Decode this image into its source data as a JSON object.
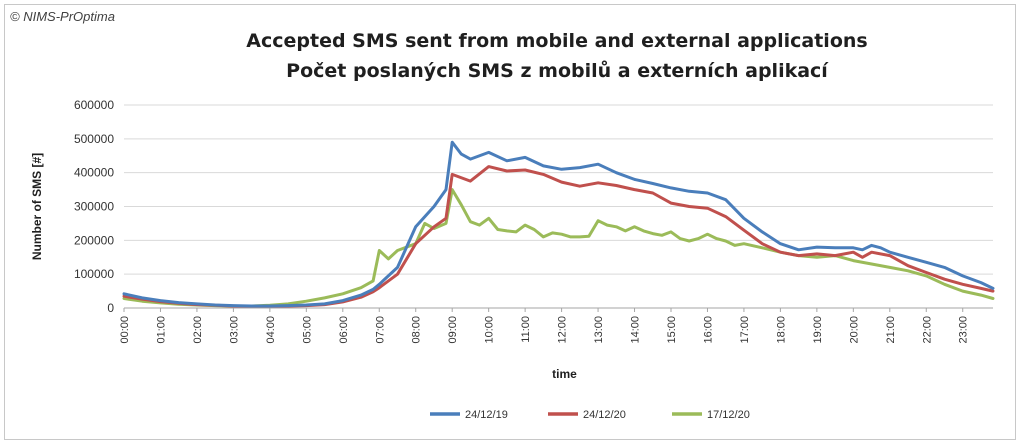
{
  "copyright": "© NIMS-PrOptima",
  "chart_data": {
    "type": "line",
    "title": "Accepted SMS sent from mobile and external applications",
    "subtitle": "Počet poslaných SMS z mobilů a externích aplikací",
    "xlabel": "time",
    "ylabel": "Number of SMS [#]",
    "ylim": [
      0,
      600000
    ],
    "yticks": [
      0,
      100000,
      200000,
      300000,
      400000,
      500000,
      600000
    ],
    "ytick_labels": [
      "0",
      "100000",
      "200000",
      "300000",
      "400000",
      "500000",
      "600000"
    ],
    "xlim": [
      0,
      23.83
    ],
    "xticks": [
      0,
      1,
      2,
      3,
      4,
      5,
      6,
      7,
      8,
      9,
      10,
      11,
      12,
      13,
      14,
      15,
      16,
      17,
      18,
      19,
      20,
      21,
      22,
      23
    ],
    "xtick_labels": [
      "00:00",
      "01:00",
      "02:00",
      "03:00",
      "04:00",
      "05:00",
      "06:00",
      "07:00",
      "08:00",
      "09:00",
      "10:00",
      "11:00",
      "12:00",
      "13:00",
      "14:00",
      "15:00",
      "16:00",
      "17:00",
      "18:00",
      "19:00",
      "20:00",
      "21:00",
      "22:00",
      "23:00"
    ],
    "grid": true,
    "legend_position": "bottom",
    "series": [
      {
        "name": "24/12/19",
        "color": "#4a7ebb",
        "x": [
          0,
          0.5,
          1,
          1.5,
          2,
          2.5,
          3,
          3.5,
          4,
          4.5,
          5,
          5.5,
          6,
          6.5,
          6.83,
          7,
          7.5,
          8,
          8.5,
          8.83,
          9,
          9.25,
          9.5,
          10,
          10.5,
          11,
          11.5,
          12,
          12.5,
          13,
          13.5,
          14,
          14.5,
          15,
          15.5,
          16,
          16.5,
          17,
          17.5,
          18,
          18.5,
          19,
          19.5,
          20,
          20.25,
          20.5,
          20.75,
          21,
          21.5,
          22,
          22.5,
          23,
          23.5,
          23.83
        ],
        "y": [
          42000,
          30000,
          22000,
          16000,
          12000,
          9000,
          7000,
          6000,
          6000,
          7000,
          9000,
          12000,
          22000,
          38000,
          55000,
          70000,
          120000,
          240000,
          300000,
          350000,
          490000,
          455000,
          440000,
          460000,
          435000,
          445000,
          420000,
          410000,
          415000,
          425000,
          400000,
          380000,
          368000,
          355000,
          345000,
          340000,
          320000,
          265000,
          225000,
          190000,
          172000,
          180000,
          178000,
          178000,
          172000,
          185000,
          178000,
          165000,
          150000,
          135000,
          120000,
          95000,
          75000,
          58000
        ]
      },
      {
        "name": "24/12/20",
        "color": "#c0504d",
        "x": [
          0,
          0.5,
          1,
          1.5,
          2,
          2.5,
          3,
          3.5,
          4,
          4.5,
          5,
          5.5,
          6,
          6.5,
          6.83,
          7,
          7.5,
          8,
          8.5,
          8.83,
          9,
          9.5,
          10,
          10.5,
          11,
          11.5,
          12,
          12.5,
          13,
          13.5,
          14,
          14.5,
          15,
          15.5,
          16,
          16.5,
          17,
          17.5,
          18,
          18.5,
          19,
          19.5,
          20,
          20.25,
          20.5,
          21,
          21.5,
          22,
          22.5,
          23,
          23.5,
          23.83
        ],
        "y": [
          35000,
          26000,
          19000,
          14000,
          10000,
          8000,
          6000,
          5500,
          5500,
          6000,
          7000,
          10000,
          18000,
          32000,
          48000,
          60000,
          100000,
          190000,
          240000,
          265000,
          395000,
          375000,
          418000,
          405000,
          408000,
          395000,
          372000,
          360000,
          370000,
          362000,
          350000,
          340000,
          310000,
          300000,
          295000,
          270000,
          230000,
          190000,
          165000,
          155000,
          160000,
          155000,
          165000,
          150000,
          165000,
          155000,
          125000,
          105000,
          85000,
          70000,
          58000,
          50000
        ]
      },
      {
        "name": "17/12/20",
        "color": "#9bbb59",
        "x": [
          0,
          0.5,
          1,
          1.5,
          2,
          2.5,
          3,
          3.5,
          4,
          4.5,
          5,
          5.5,
          6,
          6.5,
          6.83,
          7,
          7.25,
          7.5,
          8,
          8.25,
          8.5,
          8.83,
          9,
          9.25,
          9.5,
          9.75,
          10,
          10.25,
          10.5,
          10.75,
          11,
          11.25,
          11.5,
          11.75,
          12,
          12.25,
          12.5,
          12.75,
          13,
          13.25,
          13.5,
          13.75,
          14,
          14.25,
          14.5,
          14.75,
          15,
          15.25,
          15.5,
          15.75,
          16,
          16.25,
          16.5,
          16.75,
          17,
          17.5,
          18,
          18.5,
          19,
          19.5,
          20,
          20.5,
          21,
          21.5,
          22,
          22.5,
          23,
          23.5,
          23.83
        ],
        "y": [
          28000,
          20000,
          15000,
          11000,
          9000,
          7000,
          6000,
          6000,
          8000,
          12000,
          20000,
          30000,
          42000,
          60000,
          80000,
          170000,
          145000,
          170000,
          190000,
          250000,
          235000,
          250000,
          350000,
          305000,
          255000,
          245000,
          265000,
          232000,
          228000,
          225000,
          245000,
          232000,
          210000,
          222000,
          218000,
          210000,
          210000,
          212000,
          258000,
          245000,
          240000,
          228000,
          240000,
          228000,
          220000,
          215000,
          225000,
          205000,
          198000,
          205000,
          218000,
          205000,
          198000,
          185000,
          190000,
          178000,
          165000,
          155000,
          150000,
          155000,
          140000,
          130000,
          120000,
          110000,
          95000,
          70000,
          50000,
          38000,
          28000
        ]
      }
    ]
  }
}
